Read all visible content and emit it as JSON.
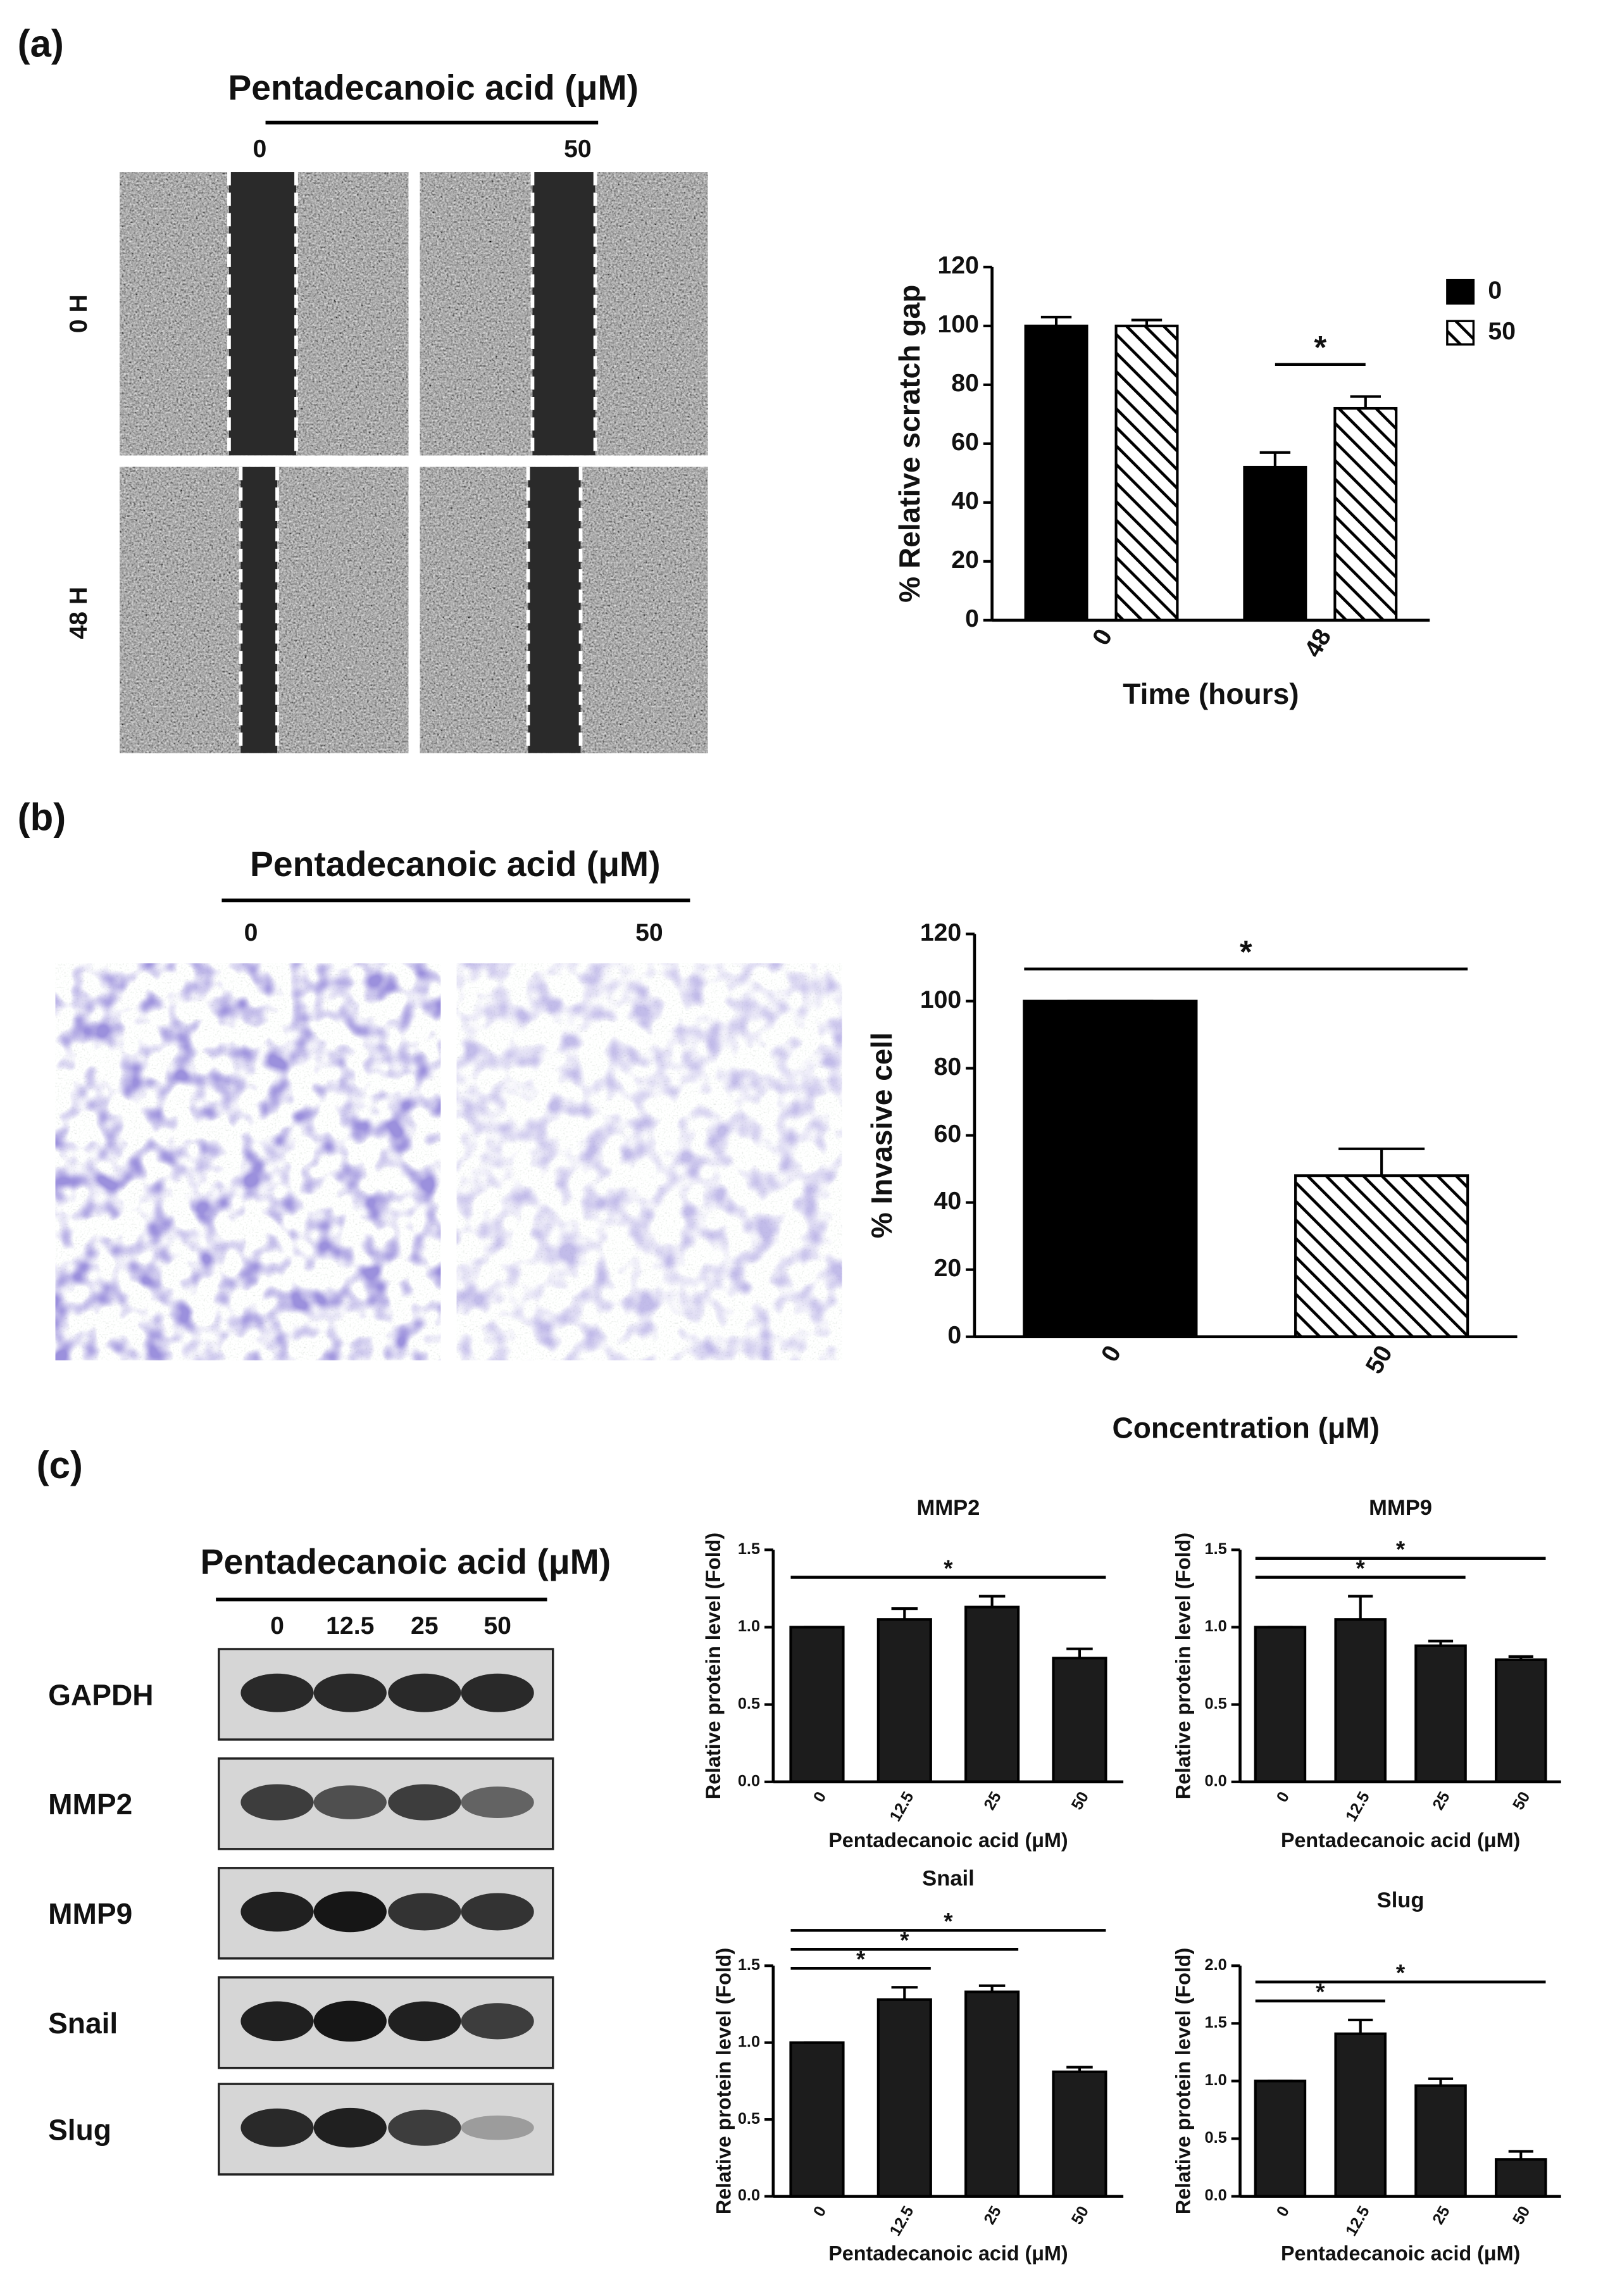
{
  "panels": {
    "a": {
      "label": "(a)",
      "treatment": "Pentadecanoic acid (μM)",
      "doses": [
        "0",
        "50"
      ],
      "times": [
        "0 H",
        "48 H"
      ]
    },
    "b": {
      "label": "(b)",
      "treatment": "Pentadecanoic acid (μM)",
      "doses": [
        "0",
        "50"
      ]
    },
    "c": {
      "label": "(c)",
      "treatment": "Pentadecanoic acid (μM)",
      "doses": [
        "0",
        "12.5",
        "25",
        "50"
      ],
      "proteins": [
        "GAPDH",
        "MMP2",
        "MMP9",
        "Snail",
        "Slug"
      ]
    }
  },
  "chart_data": [
    {
      "type": "bar",
      "categories": [
        "0",
        "48"
      ],
      "x_label": "Time (hours)",
      "y_label": "% Relative scratch gap",
      "series": [
        {
          "name": "0",
          "fill": "#000000",
          "values": [
            100,
            52
          ],
          "errors": [
            3,
            5
          ]
        },
        {
          "name": "50",
          "fill": "hatch",
          "values": [
            100,
            72
          ],
          "errors": [
            2,
            4
          ]
        }
      ],
      "ylim": [
        0,
        120
      ],
      "yticks": [
        0,
        20,
        40,
        60,
        80,
        100,
        120
      ],
      "legend": "upper right",
      "significance": [
        {
          "category": "48",
          "between": [
            "0",
            "50"
          ],
          "label": "*"
        }
      ]
    },
    {
      "type": "bar",
      "categories": [
        "0",
        "50"
      ],
      "x_label": "Concentration (μM)",
      "y_label": "% Invasive cell",
      "series": [
        {
          "fills": [
            "#000000",
            "hatch"
          ],
          "values": [
            100,
            48
          ],
          "errors": [
            0,
            8
          ]
        }
      ],
      "ylim": [
        0,
        120
      ],
      "yticks": [
        0,
        20,
        40,
        60,
        80,
        100,
        120
      ],
      "significance": [
        {
          "between": [
            "0",
            "50"
          ],
          "label": "*"
        }
      ]
    },
    {
      "type": "bar",
      "title": "MMP2",
      "categories": [
        "0",
        "12.5",
        "25",
        "50"
      ],
      "x_label": "Pentadecanoic acid (μM)",
      "y_label": "Relative protein level (Fold)",
      "series": [
        {
          "fill": "#1c1c1c",
          "values": [
            1.0,
            1.05,
            1.13,
            0.8
          ],
          "errors": [
            0,
            0.07,
            0.07,
            0.06
          ]
        }
      ],
      "ylim": [
        0,
        1.5
      ],
      "yticks": [
        {
          "value": 0,
          "label": "0.0"
        },
        0.5,
        {
          "value": 1,
          "label": "1.0"
        },
        1.5
      ],
      "significance": [
        {
          "between": [
            "0",
            "50"
          ],
          "label": "*"
        }
      ]
    },
    {
      "type": "bar",
      "title": "MMP9",
      "categories": [
        "0",
        "12.5",
        "25",
        "50"
      ],
      "x_label": "Pentadecanoic acid (μM)",
      "y_label": "Relative protein level (Fold)",
      "series": [
        {
          "fill": "#1c1c1c",
          "values": [
            1.0,
            1.05,
            0.88,
            0.79
          ],
          "errors": [
            0,
            0.15,
            0.03,
            0.02
          ]
        }
      ],
      "ylim": [
        0,
        1.5
      ],
      "yticks": [
        {
          "value": 0,
          "label": "0.0"
        },
        0.5,
        {
          "value": 1,
          "label": "1.0"
        },
        1.5
      ],
      "significance": [
        {
          "between": [
            "0",
            "25"
          ],
          "label": "*"
        },
        {
          "between": [
            "0",
            "50"
          ],
          "label": "*"
        }
      ]
    },
    {
      "type": "bar",
      "title": "Snail",
      "categories": [
        "0",
        "12.5",
        "25",
        "50"
      ],
      "x_label": "Pentadecanoic acid (μM)",
      "y_label": "Relative protein level (Fold)",
      "series": [
        {
          "fill": "#1c1c1c",
          "values": [
            1.0,
            1.28,
            1.33,
            0.81
          ],
          "errors": [
            0,
            0.08,
            0.04,
            0.03
          ]
        }
      ],
      "ylim": [
        0,
        1.5
      ],
      "yticks": [
        {
          "value": 0,
          "label": "0.0"
        },
        0.5,
        {
          "value": 1,
          "label": "1.0"
        },
        1.5
      ],
      "significance": [
        {
          "between": [
            "0",
            "12.5"
          ],
          "label": "*"
        },
        {
          "between": [
            "0",
            "25"
          ],
          "label": "*"
        },
        {
          "between": [
            "0",
            "50"
          ],
          "label": "*"
        }
      ]
    },
    {
      "type": "bar",
      "title": "Slug",
      "categories": [
        "0",
        "12.5",
        "25",
        "50"
      ],
      "x_label": "Pentadecanoic acid (μM)",
      "y_label": "Relative protein level (Fold)",
      "series": [
        {
          "fill": "#1c1c1c",
          "values": [
            1.0,
            1.41,
            0.96,
            0.32
          ],
          "errors": [
            0,
            0.12,
            0.06,
            0.07
          ]
        }
      ],
      "ylim": [
        0,
        2.0
      ],
      "yticks": [
        {
          "value": 0,
          "label": "0.0"
        },
        0.5,
        {
          "value": 1,
          "label": "1.0"
        },
        1.5,
        {
          "value": 2,
          "label": "2.0"
        }
      ],
      "significance": [
        {
          "between": [
            "0",
            "12.5"
          ],
          "label": "*"
        },
        {
          "between": [
            "0",
            "50"
          ],
          "label": "*"
        }
      ]
    }
  ]
}
